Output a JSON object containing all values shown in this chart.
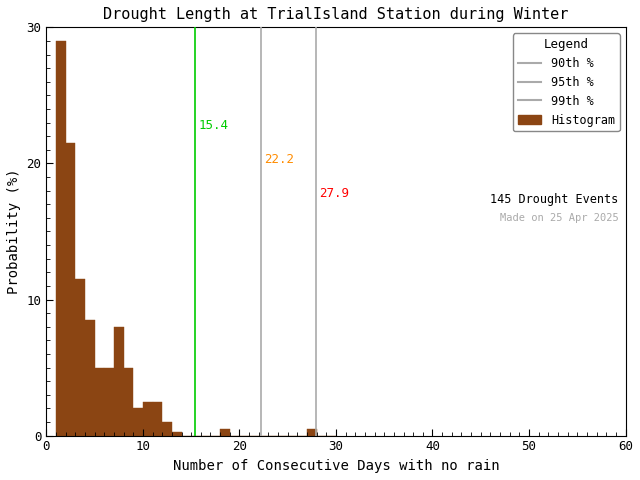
{
  "title": "Drought Length at TrialIsland Station during Winter",
  "xlabel": "Number of Consecutive Days with no rain",
  "ylabel": "Probability (%)",
  "xlim": [
    0,
    60
  ],
  "ylim": [
    0,
    30
  ],
  "xticks": [
    0,
    10,
    20,
    30,
    40,
    50,
    60
  ],
  "yticks": [
    0,
    10,
    20,
    30
  ],
  "bar_color": "#8B4513",
  "bar_edgecolor": "#8B4513",
  "background_color": "#ffffff",
  "hist_bin_edges": [
    1,
    2,
    3,
    4,
    5,
    6,
    7,
    8,
    9,
    10,
    11,
    12,
    13,
    14,
    15,
    16,
    17,
    18,
    19,
    20,
    21,
    22,
    23,
    24,
    25,
    26,
    27,
    28,
    29,
    30
  ],
  "hist_values": [
    29.0,
    21.5,
    11.5,
    8.5,
    5.0,
    5.0,
    8.0,
    5.0,
    2.0,
    2.5,
    2.5,
    1.0,
    0.3,
    0.0,
    0.0,
    0.0,
    0.0,
    0.5,
    0.0,
    0.0,
    0.0,
    0.0,
    0.0,
    0.0,
    0.0,
    0.0,
    0.5,
    0.0,
    0.0
  ],
  "percentile_90": 15.4,
  "percentile_95": 22.2,
  "percentile_99": 27.9,
  "line_90_color": "#00cc00",
  "line_95_color": "#ff8c00",
  "line_99_color": "#ff0000",
  "legend_line_color": "#aaaaaa",
  "label_90": "90th %",
  "label_95": "95th %",
  "label_99": "99th %",
  "n_events": "145 Drought Events",
  "made_on": "Made on 25 Apr 2025",
  "title_fontsize": 11,
  "axis_fontsize": 10,
  "tick_fontsize": 9,
  "legend_title": "Legend"
}
